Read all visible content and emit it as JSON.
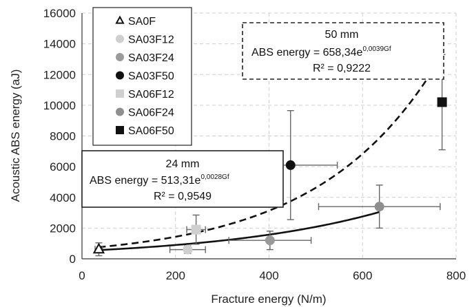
{
  "chart_data": {
    "type": "scatter",
    "xlabel": "Fracture energy (N/m)",
    "ylabel": "Acoustic ABS energy (aJ)",
    "xlim": [
      0,
      800
    ],
    "ylim": [
      0,
      16000
    ],
    "xticks": [
      "0",
      "200",
      "400",
      "600",
      "800"
    ],
    "yticks": [
      "0",
      "2000",
      "4000",
      "6000",
      "8000",
      "10000",
      "12000",
      "14000",
      "16000"
    ],
    "grid": "dashed",
    "legend_placement": "top-left",
    "series": [
      {
        "name": "SA0F",
        "marker": "open-triangle",
        "color": "#111111",
        "x": 36,
        "y": 620,
        "xerr": 8,
        "yerr": 420
      },
      {
        "name": "SA03F12",
        "marker": "circle",
        "color": "#cfcfcf",
        "x": 226,
        "y": 600,
        "xerr": 38,
        "yerr": 250
      },
      {
        "name": "SA03F24",
        "marker": "circle",
        "color": "#9a9a9a",
        "x": 402,
        "y": 1200,
        "xerr": 88,
        "yerr": 600
      },
      {
        "name": "SA03F50",
        "marker": "circle",
        "color": "#111111",
        "x": 446,
        "y": 6100,
        "xerr": 100,
        "yerr": 3550
      },
      {
        "name": "SA06F12",
        "marker": "square",
        "color": "#cfcfcf",
        "x": 244,
        "y": 1900,
        "xerr": 20,
        "yerr": 950
      },
      {
        "name": "SA06F24",
        "marker": "circle",
        "color": "#8f8f8f",
        "x": 636,
        "y": 3400,
        "xerr": 130,
        "yerr": 1400
      },
      {
        "name": "SA06F50",
        "marker": "square",
        "color": "#111111",
        "x": 770,
        "y": 10200,
        "xerr": 0,
        "yerr": 3100
      }
    ],
    "fits": [
      {
        "label": "24 mm",
        "a": 513.31,
        "b": 0.0028,
        "r2": "0,9549",
        "x_range": [
          36,
          636
        ],
        "style": "solid",
        "eq_prefix": "ABS energy = 513,31e",
        "eq_exp": "0,0028Gf",
        "r2_text": "R² = 0,9549"
      },
      {
        "label": "50 mm",
        "a": 658.34,
        "b": 0.0039,
        "r2": "0,9222",
        "x_range": [
          36,
          766
        ],
        "style": "dashed",
        "eq_prefix": "ABS energy = 658,34e",
        "eq_exp": "0,0039Gf",
        "r2_text": "R² = 0,9222"
      }
    ]
  },
  "annotations": {
    "box_24": {
      "title": "24 mm",
      "eq_prefix": "ABS energy = 513,31e",
      "eq_exp": "0,0028Gf",
      "r2": "R² = 0,9549"
    },
    "box_50": {
      "title": "50 mm",
      "eq_prefix": "ABS energy = 658,34e",
      "eq_exp": "0,0039Gf",
      "r2": "R² = 0,9222"
    }
  }
}
